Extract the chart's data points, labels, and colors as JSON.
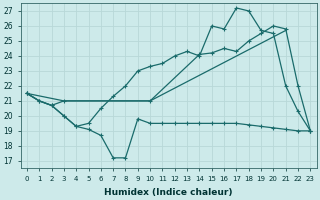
{
  "xlabel": "Humidex (Indice chaleur)",
  "bg_color": "#cdeaea",
  "grid_color": "#b8d8d8",
  "line_color": "#1a6b6b",
  "xlim": [
    -0.5,
    23.5
  ],
  "ylim": [
    16.5,
    27.5
  ],
  "xticks": [
    0,
    1,
    2,
    3,
    4,
    5,
    6,
    7,
    8,
    9,
    10,
    11,
    12,
    13,
    14,
    15,
    16,
    17,
    18,
    19,
    20,
    21,
    22,
    23
  ],
  "yticks": [
    17,
    18,
    19,
    20,
    21,
    22,
    23,
    24,
    25,
    26,
    27
  ],
  "line1_x": [
    0,
    1,
    2,
    3,
    10,
    21
  ],
  "line1_y": [
    21.5,
    21.0,
    20.7,
    21.0,
    21.0,
    25.7
  ],
  "line2_x": [
    0,
    1,
    2,
    3,
    4,
    5,
    6,
    7,
    8,
    9,
    10,
    11,
    12,
    13,
    14,
    15,
    16,
    17,
    18,
    19,
    20,
    21,
    22,
    23
  ],
  "line2_y": [
    21.5,
    21.0,
    20.7,
    20.0,
    19.3,
    19.1,
    18.7,
    17.2,
    17.2,
    19.8,
    19.5,
    19.5,
    19.5,
    19.5,
    19.5,
    19.5,
    19.5,
    19.5,
    19.4,
    19.3,
    19.2,
    19.1,
    19.0,
    19.0
  ],
  "line3_x": [
    0,
    1,
    2,
    3,
    4,
    5,
    6,
    7,
    8,
    9,
    10,
    11,
    12,
    13,
    14,
    15,
    16,
    17,
    18,
    19,
    20,
    21,
    22,
    23
  ],
  "line3_y": [
    21.5,
    21.0,
    20.7,
    20.0,
    19.3,
    19.5,
    20.5,
    21.3,
    22.0,
    23.0,
    23.3,
    23.5,
    24.0,
    24.3,
    24.0,
    26.0,
    25.8,
    27.2,
    27.0,
    25.7,
    25.5,
    22.0,
    20.3,
    19.0
  ],
  "line4_x": [
    0,
    3,
    10,
    14,
    15,
    16,
    17,
    18,
    19,
    20,
    21,
    22,
    23
  ],
  "line4_y": [
    21.5,
    21.0,
    21.0,
    24.1,
    24.2,
    24.5,
    24.3,
    25.0,
    25.5,
    26.0,
    25.8,
    22.0,
    19.0
  ]
}
